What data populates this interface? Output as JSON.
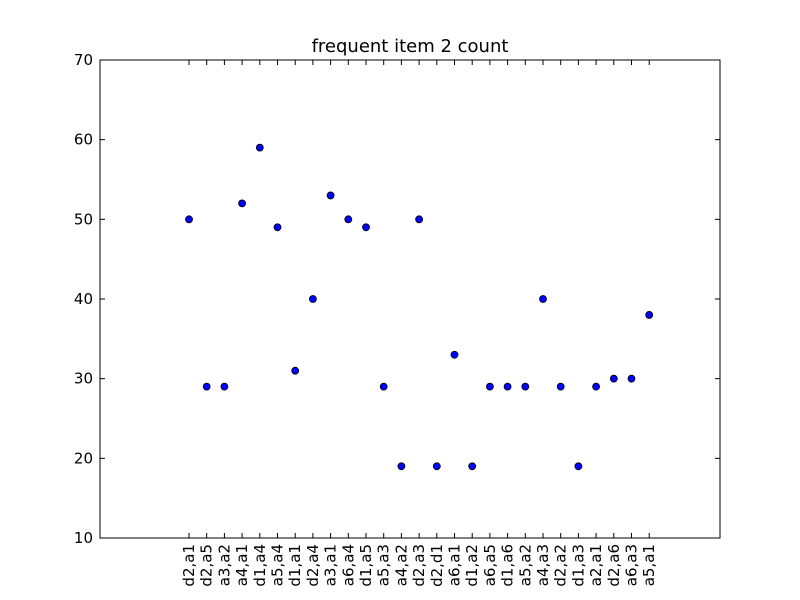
{
  "chart_data": {
    "type": "scatter",
    "title": "frequent item 2 count",
    "xlabel": "",
    "ylabel": "",
    "categories": [
      "d2,a1",
      "d2,a5",
      "a3,a2",
      "a4,a1",
      "d1,a4",
      "a5,a4",
      "d1,a1",
      "d2,a4",
      "a3,a1",
      "a6,a4",
      "d1,a5",
      "a5,a3",
      "a4,a2",
      "d2,a3",
      "d2,d1",
      "a6,a1",
      "d1,a2",
      "a6,a5",
      "d1,a6",
      "a5,a2",
      "a4,a3",
      "d2,a2",
      "d1,a3",
      "a2,a1",
      "d2,a6",
      "a6,a3",
      "a5,a1"
    ],
    "values": [
      50,
      29,
      29,
      52,
      59,
      49,
      31,
      40,
      53,
      50,
      49,
      29,
      19,
      50,
      19,
      33,
      19,
      29,
      29,
      29,
      40,
      29,
      19,
      29,
      30,
      30,
      38
    ],
    "ylim": [
      10,
      70
    ],
    "yticks": [
      10,
      20,
      30,
      40,
      50,
      60,
      70
    ],
    "grid": false,
    "marker_color": "#0000ff"
  }
}
